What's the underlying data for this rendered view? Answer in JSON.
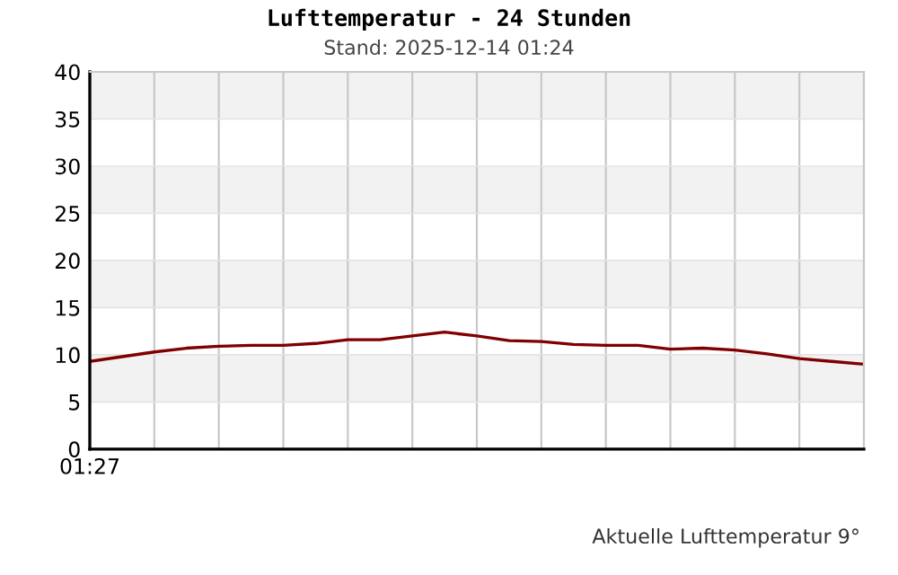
{
  "chart_data": {
    "type": "line",
    "title": "Lufttemperatur - 24 Stunden",
    "subtitle": "Stand: 2025-12-14 01:24",
    "categories": [
      "01:27",
      null,
      null,
      null,
      null,
      null,
      null,
      null,
      null,
      null,
      null,
      null,
      null,
      null,
      null,
      null,
      null,
      null,
      null,
      null,
      null,
      null,
      null,
      null,
      null
    ],
    "series": [
      {
        "color": "#800000",
        "values": [
          9.3,
          9.8,
          10.3,
          10.7,
          10.9,
          11.0,
          11.0,
          11.2,
          11.6,
          11.6,
          12.0,
          12.4,
          12.0,
          11.5,
          11.4,
          11.1,
          11.0,
          11.0,
          10.6,
          10.7,
          10.5,
          10.1,
          9.6,
          9.3,
          9.0
        ]
      }
    ],
    "ylim": [
      0,
      40
    ],
    "yticks": [
      0,
      5,
      10,
      15,
      20,
      25,
      30,
      35,
      40
    ],
    "grid": true,
    "marker": "none",
    "line_style": "solid",
    "annotations": [
      "Aktuelle Lufttemperatur 9°"
    ]
  }
}
